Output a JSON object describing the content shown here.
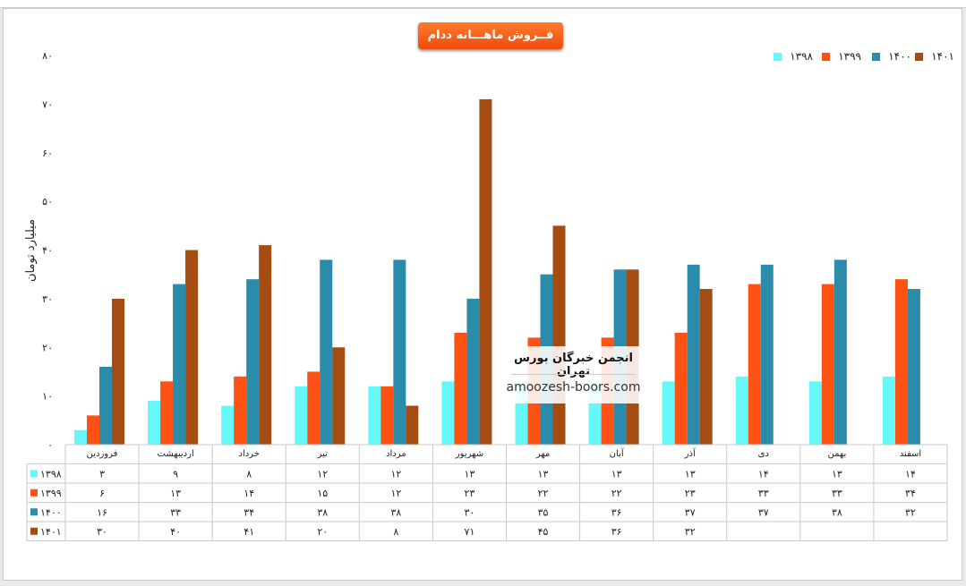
{
  "chart_data": {
    "type": "bar",
    "title": "فــروش ماهـــانه ددام",
    "ylabel": "میلیارد تومان",
    "ylim": [
      0,
      80
    ],
    "yticks": [
      "۰",
      "۱۰",
      "۲۰",
      "۳۰",
      "۴۰",
      "۵۰",
      "۶۰",
      "۷۰",
      "۸۰"
    ],
    "legend_position": "top-right",
    "categories": [
      "فروردین",
      "اردیبهشت",
      "خرداد",
      "تیر",
      "مرداد",
      "شهریور",
      "مهر",
      "آبان",
      "آذر",
      "دی",
      "بهمن",
      "اسفند"
    ],
    "series": [
      {
        "name": "۱۳۹۸",
        "color": "#66f7f9",
        "values": [
          3,
          9,
          8,
          12,
          12,
          13,
          13,
          13,
          13,
          14,
          13,
          14
        ],
        "labels": [
          "۳",
          "۹",
          "۸",
          "۱۲",
          "۱۲",
          "۱۳",
          "۱۳",
          "۱۳",
          "۱۳",
          "۱۴",
          "۱۳",
          "۱۴"
        ]
      },
      {
        "name": "۱۳۹۹",
        "color": "#fd5214",
        "values": [
          6,
          13,
          14,
          15,
          12,
          23,
          22,
          22,
          23,
          33,
          33,
          34
        ],
        "labels": [
          "۶",
          "۱۳",
          "۱۴",
          "۱۵",
          "۱۲",
          "۲۳",
          "۲۲",
          "۲۲",
          "۲۳",
          "۳۳",
          "۳۳",
          "۳۴"
        ]
      },
      {
        "name": "۱۴۰۰",
        "color": "#2a8caa",
        "values": [
          16,
          33,
          34,
          38,
          38,
          30,
          35,
          36,
          37,
          37,
          38,
          32
        ],
        "labels": [
          "۱۶",
          "۳۳",
          "۳۴",
          "۳۸",
          "۳۸",
          "۳۰",
          "۳۵",
          "۳۶",
          "۳۷",
          "۳۷",
          "۳۸",
          "۳۲"
        ]
      },
      {
        "name": "۱۴۰۱",
        "color": "#a54c12",
        "values": [
          30,
          40,
          41,
          20,
          8,
          71,
          45,
          36,
          32,
          null,
          null,
          null
        ],
        "labels": [
          "۳۰",
          "۴۰",
          "۴۱",
          "۲۰",
          "۸",
          "۷۱",
          "۴۵",
          "۳۶",
          "۳۲",
          "",
          "",
          ""
        ]
      }
    ]
  },
  "watermark": {
    "line1": "انجمن خبرگان بورس تهران",
    "line2": "amoozesh-boors.com"
  }
}
